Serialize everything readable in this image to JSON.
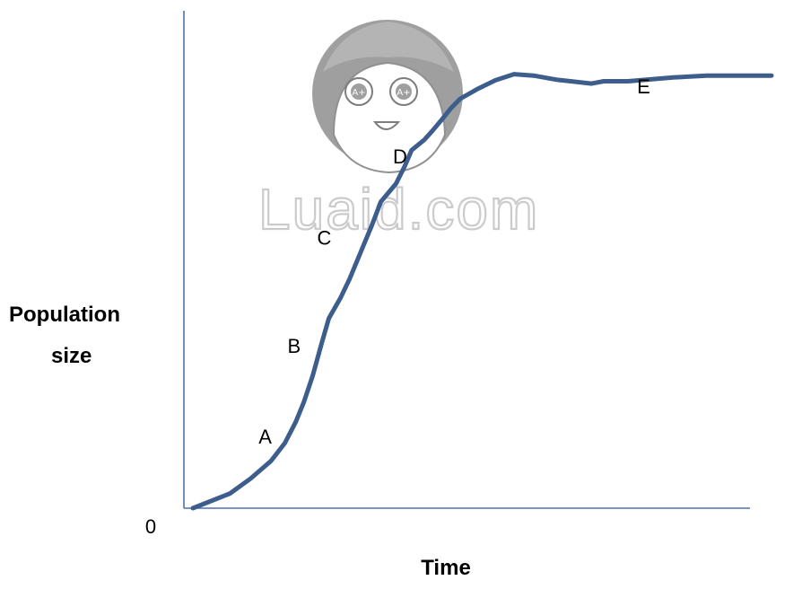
{
  "chart_data": {
    "type": "line",
    "title": "",
    "xlabel": "Time",
    "ylabel_lines": [
      "Population",
      "size"
    ],
    "origin_label": "0",
    "xlim": [
      0,
      100
    ],
    "ylim": [
      0,
      100
    ],
    "grid": false,
    "legend": "none",
    "series": [
      {
        "color": "#3d5e8c",
        "points": [
          [
            0,
            0
          ],
          [
            6.4,
            3.1
          ],
          [
            10,
            6.3
          ],
          [
            13.5,
            10
          ],
          [
            15.9,
            13.8
          ],
          [
            17.8,
            18.3
          ],
          [
            19.2,
            22.5
          ],
          [
            20.7,
            28
          ],
          [
            22.3,
            35.1
          ],
          [
            23.5,
            40.2
          ],
          [
            25.5,
            44.5
          ],
          [
            27.1,
            48.6
          ],
          [
            29.7,
            56.3
          ],
          [
            30.9,
            59.8
          ],
          [
            32.5,
            64.9
          ],
          [
            35.1,
            68.7
          ],
          [
            36.6,
            72.4
          ],
          [
            37.8,
            75.8
          ],
          [
            40,
            78
          ],
          [
            41.4,
            79.9
          ],
          [
            43.1,
            82.4
          ],
          [
            44.6,
            84.7
          ],
          [
            46.2,
            86.7
          ],
          [
            49.1,
            88.7
          ],
          [
            52.3,
            90.6
          ],
          [
            55.5,
            91.9
          ],
          [
            58.9,
            91.6
          ],
          [
            63,
            90.7
          ],
          [
            68.9,
            89.9
          ],
          [
            71,
            90.4
          ],
          [
            75.2,
            90.4
          ],
          [
            83,
            91.2
          ],
          [
            88.8,
            91.6
          ],
          [
            100,
            91.6
          ]
        ]
      }
    ],
    "annotations": [
      {
        "text": "A",
        "x": 12.5,
        "y": 13.7
      },
      {
        "text": "B",
        "x": 17.5,
        "y": 32.9
      },
      {
        "text": "C",
        "x": 22.7,
        "y": 55.8
      },
      {
        "text": "D",
        "x": 35.8,
        "y": 73
      },
      {
        "text": "E",
        "x": 77.9,
        "y": 87.8
      }
    ]
  },
  "watermark": {
    "text": "Luaid.com",
    "badge": "A+"
  },
  "colors": {
    "axis": "#4a72b0",
    "curve": "#3d5e8c",
    "watermark": "#c9c9c9"
  }
}
